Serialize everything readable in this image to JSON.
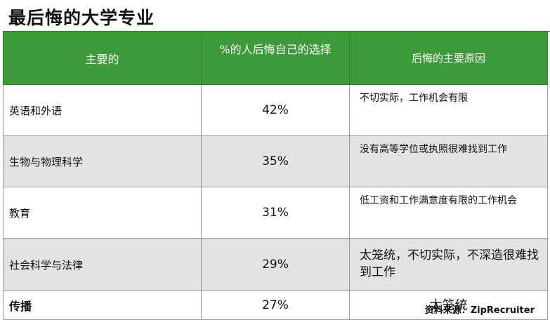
{
  "title": "最后悔的大学专业",
  "headers": [
    "主要的",
    "%的人后悔自己的选择",
    "后悔的主要原因"
  ],
  "rows": [
    {
      "major": "英语和外语",
      "percent": "42%",
      "reason": "不切实际，工作机会有限"
    },
    {
      "major": "生物与物理科学",
      "percent": "35%",
      "reason": "没有高等学位或执照很难找到工作"
    },
    {
      "major": "教育",
      "percent": "31%",
      "reason": "低工资和工作满意度有限的工作机会"
    },
    {
      "major": "社会科学与法律",
      "percent": "29%",
      "reason": "太笼统，不切实际，不深造很难找到工作"
    },
    {
      "major": "传播",
      "percent": "27%",
      "reason": "太笼统"
    }
  ],
  "source": "资料来源：ZipRecruiter",
  "colors": {
    "header_bg": "#3c9a3a",
    "alt_row_bg": "#e3e3e3"
  }
}
